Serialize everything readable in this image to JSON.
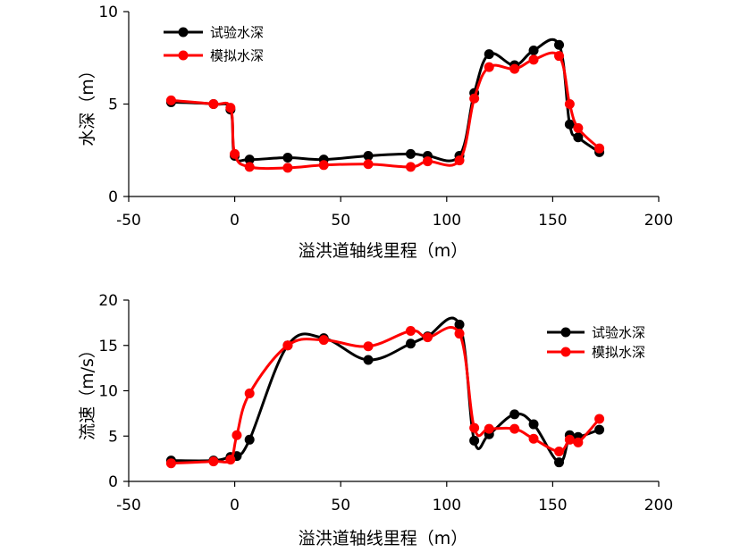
{
  "colors": {
    "test_series": "#000000",
    "sim_series": "#ff0000",
    "axis": "#000000"
  },
  "chart_data": [
    {
      "type": "line",
      "xlabel": "溢洪道轴线里程（m）",
      "ylabel": "水深（m）",
      "xlim": [
        -50,
        200
      ],
      "ylim": [
        0,
        10
      ],
      "xticks": [
        -50,
        0,
        50,
        100,
        150,
        200
      ],
      "yticks": [
        0,
        5,
        10
      ],
      "grid": false,
      "legend_position": "top-left",
      "series": [
        {
          "name": "试验水深",
          "color": "#000000",
          "x": [
            -30,
            -10,
            -2,
            0,
            7,
            25,
            42,
            63,
            83,
            91,
            106,
            113,
            120,
            132,
            141,
            153,
            158,
            162,
            172
          ],
          "y": [
            5.1,
            5.0,
            4.7,
            2.2,
            2.0,
            2.1,
            2.0,
            2.2,
            2.3,
            2.2,
            2.2,
            5.6,
            7.7,
            7.1,
            7.9,
            8.2,
            3.9,
            3.2,
            2.4
          ]
        },
        {
          "name": "模拟水深",
          "color": "#ff0000",
          "x": [
            -30,
            -10,
            -2,
            0,
            7,
            25,
            42,
            63,
            83,
            91,
            106,
            113,
            120,
            132,
            141,
            153,
            158,
            162,
            172
          ],
          "y": [
            5.2,
            5.0,
            4.8,
            2.3,
            1.6,
            1.55,
            1.7,
            1.75,
            1.6,
            1.9,
            1.95,
            5.3,
            7.0,
            6.9,
            7.4,
            7.6,
            5.0,
            3.7,
            2.6
          ]
        }
      ]
    },
    {
      "type": "line",
      "xlabel": "溢洪道轴线里程（m）",
      "ylabel": "流速（m/s）",
      "xlim": [
        -50,
        200
      ],
      "ylim": [
        0,
        20
      ],
      "xticks": [
        -50,
        0,
        50,
        100,
        150,
        200
      ],
      "yticks": [
        0,
        5,
        10,
        15,
        20
      ],
      "grid": false,
      "legend_position": "top-right",
      "series": [
        {
          "name": "试验水深",
          "color": "#000000",
          "x": [
            -30,
            -10,
            -2,
            1,
            7,
            25,
            42,
            63,
            83,
            91,
            106,
            113,
            120,
            132,
            141,
            153,
            158,
            162,
            172
          ],
          "y": [
            2.3,
            2.3,
            2.7,
            2.8,
            4.6,
            15.0,
            15.8,
            13.4,
            15.2,
            16.0,
            17.3,
            4.5,
            5.2,
            7.4,
            6.3,
            2.1,
            5.1,
            4.9,
            5.7
          ]
        },
        {
          "name": "模拟水深",
          "color": "#ff0000",
          "x": [
            -30,
            -10,
            -2,
            1,
            7,
            25,
            42,
            63,
            83,
            91,
            106,
            113,
            120,
            132,
            141,
            153,
            158,
            162,
            172
          ],
          "y": [
            2.0,
            2.2,
            2.4,
            5.1,
            9.7,
            15.0,
            15.6,
            14.9,
            16.6,
            15.9,
            16.3,
            5.9,
            5.8,
            5.8,
            4.7,
            3.3,
            4.6,
            4.3,
            6.9
          ]
        }
      ]
    }
  ]
}
